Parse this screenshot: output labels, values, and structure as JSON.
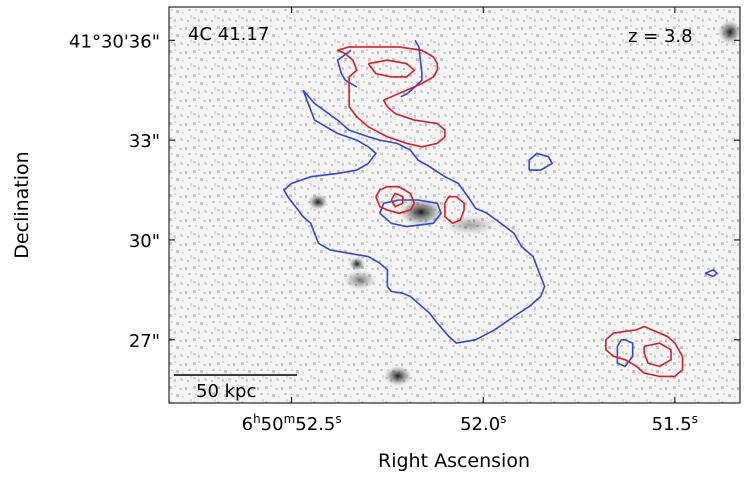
{
  "chart_data": {
    "type": "contour",
    "title": "",
    "xlabel": "Right Ascension",
    "ylabel": "Declination",
    "annotations": {
      "object_label": "4C 41.17",
      "redshift_label": "z = 3.8",
      "scale_bar_label": "50 kpc"
    },
    "x_ticks": [
      {
        "value": 52.5,
        "label_main": "6",
        "sup1": "h",
        "mid": "50",
        "sup2": "m",
        "tail": "52.5",
        "sup3": "s"
      },
      {
        "value": 52.0,
        "label_main": "",
        "sup1": "",
        "mid": "",
        "sup2": "",
        "tail": "52.0",
        "sup3": "s"
      },
      {
        "value": 51.5,
        "label_main": "",
        "sup1": "",
        "mid": "",
        "sup2": "",
        "tail": "51.5",
        "sup3": "s"
      }
    ],
    "y_ticks": [
      {
        "value": 36,
        "label": "41°30'36\""
      },
      {
        "value": 33,
        "label": "33\""
      },
      {
        "value": 30,
        "label": "30\""
      },
      {
        "value": 27,
        "label": "27\""
      }
    ],
    "x_range_ra_seconds": [
      52.82,
      51.33
    ],
    "y_range_dec_arcsec": [
      25.1,
      37.0
    ],
    "grid": false,
    "background": "grayscale optical image",
    "series": [
      {
        "color": "#3346d6",
        "contours": [
          [
            [
              52.178,
              36.0
            ],
            [
              52.168,
              35.8
            ],
            [
              52.16,
              35.0
            ],
            [
              52.16,
              34.8
            ],
            [
              52.178,
              34.6
            ],
            [
              52.198,
              34.4
            ],
            [
              52.215,
              34.3
            ]
          ],
          [
            [
              52.345,
              35.7
            ],
            [
              52.38,
              35.4
            ],
            [
              52.37,
              35.0
            ],
            [
              52.36,
              34.8
            ],
            [
              52.33,
              34.6
            ]
          ],
          [
            [
              52.47,
              34.5
            ],
            [
              52.44,
              34.1
            ],
            [
              52.38,
              33.6
            ],
            [
              52.35,
              33.3
            ],
            [
              52.3,
              33.1
            ],
            [
              52.27,
              33.0
            ],
            [
              52.225,
              32.9
            ],
            [
              52.19,
              32.7
            ],
            [
              52.17,
              32.4
            ],
            [
              52.14,
              32.2
            ],
            [
              52.1,
              31.9
            ],
            [
              52.065,
              31.7
            ],
            [
              52.04,
              31.3
            ],
            [
              52.02,
              30.95
            ],
            [
              51.99,
              30.8
            ],
            [
              51.96,
              30.55
            ],
            [
              51.92,
              30.2
            ],
            [
              51.9,
              29.8
            ],
            [
              51.87,
              29.5
            ],
            [
              51.86,
              29.2
            ],
            [
              51.85,
              28.9
            ],
            [
              51.84,
              28.6
            ],
            [
              51.85,
              28.3
            ],
            [
              51.88,
              28.0
            ],
            [
              51.92,
              27.7
            ],
            [
              51.97,
              27.3
            ],
            [
              52.02,
              27.0
            ],
            [
              52.07,
              26.9
            ],
            [
              52.09,
              27.1
            ],
            [
              52.12,
              27.5
            ],
            [
              52.14,
              27.8
            ],
            [
              52.17,
              28.1
            ],
            [
              52.19,
              28.3
            ],
            [
              52.21,
              28.4
            ],
            [
              52.24,
              28.45
            ],
            [
              52.25,
              28.6
            ],
            [
              52.25,
              28.9
            ],
            [
              52.25,
              29.1
            ],
            [
              52.27,
              29.3
            ],
            [
              52.3,
              29.5
            ],
            [
              52.35,
              29.6
            ],
            [
              52.4,
              29.7
            ],
            [
              52.43,
              29.9
            ],
            [
              52.44,
              30.2
            ],
            [
              52.45,
              30.5
            ],
            [
              52.47,
              30.7
            ],
            [
              52.49,
              31.0
            ],
            [
              52.51,
              31.3
            ],
            [
              52.52,
              31.5
            ],
            [
              52.5,
              31.7
            ],
            [
              52.45,
              31.9
            ],
            [
              52.38,
              32.0
            ],
            [
              52.33,
              32.1
            ],
            [
              52.3,
              32.3
            ],
            [
              52.28,
              32.6
            ],
            [
              52.3,
              32.8
            ],
            [
              52.33,
              33.0
            ],
            [
              52.38,
              33.2
            ],
            [
              52.41,
              33.4
            ],
            [
              52.44,
              33.6
            ],
            [
              52.45,
              33.9
            ],
            [
              52.46,
              34.2
            ],
            [
              52.47,
              34.5
            ]
          ],
          [
            [
              52.27,
              30.8
            ],
            [
              52.24,
              30.5
            ],
            [
              52.2,
              30.4
            ],
            [
              52.13,
              30.5
            ],
            [
              52.11,
              30.8
            ],
            [
              52.12,
              31.1
            ],
            [
              52.17,
              31.2
            ],
            [
              52.22,
              31.2
            ],
            [
              52.26,
              31.1
            ],
            [
              52.27,
              30.8
            ]
          ],
          [
            [
              51.88,
              32.1
            ],
            [
              51.88,
              32.4
            ],
            [
              51.86,
              32.6
            ],
            [
              51.83,
              32.5
            ],
            [
              51.82,
              32.3
            ],
            [
              51.85,
              32.1
            ],
            [
              51.88,
              32.1
            ]
          ],
          [
            [
              51.64,
              27.0
            ],
            [
              51.65,
              26.8
            ],
            [
              51.65,
              26.5
            ],
            [
              51.65,
              26.3
            ],
            [
              51.63,
              26.2
            ],
            [
              51.61,
              26.5
            ],
            [
              51.61,
              26.9
            ],
            [
              51.63,
              27.0
            ],
            [
              51.64,
              27.0
            ]
          ],
          [
            [
              51.4,
              28.9
            ],
            [
              51.39,
              29.0
            ],
            [
              51.4,
              29.1
            ],
            [
              51.42,
              29.0
            ],
            [
              51.4,
              28.9
            ]
          ]
        ]
      },
      {
        "color": "#d81d28",
        "contours": [
          [
            [
              52.35,
              34.9
            ],
            [
              52.33,
              35.1
            ],
            [
              52.34,
              35.4
            ],
            [
              52.36,
              35.6
            ],
            [
              52.38,
              35.7
            ],
            [
              52.35,
              35.8
            ],
            [
              52.28,
              35.8
            ],
            [
              52.22,
              35.8
            ],
            [
              52.16,
              35.7
            ],
            [
              52.13,
              35.5
            ],
            [
              52.12,
              35.3
            ],
            [
              52.12,
              35.1
            ],
            [
              52.13,
              34.9
            ],
            [
              52.16,
              34.7
            ],
            [
              52.2,
              34.5
            ],
            [
              52.24,
              34.3
            ],
            [
              52.26,
              34.2
            ],
            [
              52.25,
              34.0
            ],
            [
              52.23,
              33.8
            ],
            [
              52.18,
              33.6
            ],
            [
              52.12,
              33.5
            ],
            [
              52.1,
              33.3
            ],
            [
              52.1,
              33.1
            ],
            [
              52.12,
              32.9
            ],
            [
              52.16,
              32.8
            ],
            [
              52.2,
              32.9
            ],
            [
              52.25,
              33.1
            ],
            [
              52.3,
              33.4
            ],
            [
              52.33,
              33.7
            ],
            [
              52.35,
              34.0
            ],
            [
              52.35,
              34.3
            ],
            [
              52.35,
              34.6
            ],
            [
              52.35,
              34.9
            ]
          ],
          [
            [
              52.3,
              35.3
            ],
            [
              52.25,
              35.4
            ],
            [
              52.2,
              35.3
            ],
            [
              52.18,
              35.1
            ],
            [
              52.2,
              34.9
            ],
            [
              52.24,
              34.9
            ],
            [
              52.28,
              35.0
            ],
            [
              52.3,
              35.3
            ]
          ],
          [
            [
              52.28,
              31.3
            ],
            [
              52.27,
              31.5
            ],
            [
              52.25,
              31.6
            ],
            [
              52.22,
              31.6
            ],
            [
              52.19,
              31.4
            ],
            [
              52.18,
              31.1
            ],
            [
              52.19,
              30.9
            ],
            [
              52.22,
              30.8
            ],
            [
              52.25,
              30.9
            ],
            [
              52.27,
              31.0
            ],
            [
              52.28,
              31.3
            ]
          ],
          [
            [
              52.24,
              31.2
            ],
            [
              52.23,
              31.4
            ],
            [
              52.21,
              31.3
            ],
            [
              52.21,
              31.1
            ],
            [
              52.23,
              31.0
            ],
            [
              52.24,
              31.2
            ]
          ],
          [
            [
              52.1,
              31.1
            ],
            [
              52.09,
              31.3
            ],
            [
              52.07,
              31.3
            ],
            [
              52.05,
              31.1
            ],
            [
              52.05,
              30.9
            ],
            [
              52.06,
              30.6
            ],
            [
              52.08,
              30.5
            ],
            [
              52.1,
              30.7
            ],
            [
              52.1,
              31.1
            ]
          ],
          [
            [
              51.6,
              27.3
            ],
            [
              51.58,
              27.4
            ],
            [
              51.56,
              27.3
            ],
            [
              51.52,
              27.1
            ],
            [
              51.5,
              26.9
            ],
            [
              51.48,
              26.5
            ],
            [
              51.48,
              26.1
            ],
            [
              51.5,
              25.9
            ],
            [
              51.54,
              25.9
            ],
            [
              51.58,
              26.0
            ],
            [
              51.6,
              26.2
            ],
            [
              51.63,
              26.4
            ],
            [
              51.66,
              26.5
            ],
            [
              51.68,
              26.7
            ],
            [
              51.68,
              27.0
            ],
            [
              51.66,
              27.2
            ],
            [
              51.6,
              27.3
            ]
          ],
          [
            [
              51.58,
              26.8
            ],
            [
              51.54,
              26.9
            ],
            [
              51.51,
              26.7
            ],
            [
              51.51,
              26.4
            ],
            [
              51.54,
              26.2
            ],
            [
              51.57,
              26.3
            ],
            [
              51.58,
              26.6
            ],
            [
              51.58,
              26.8
            ]
          ]
        ]
      }
    ]
  }
}
